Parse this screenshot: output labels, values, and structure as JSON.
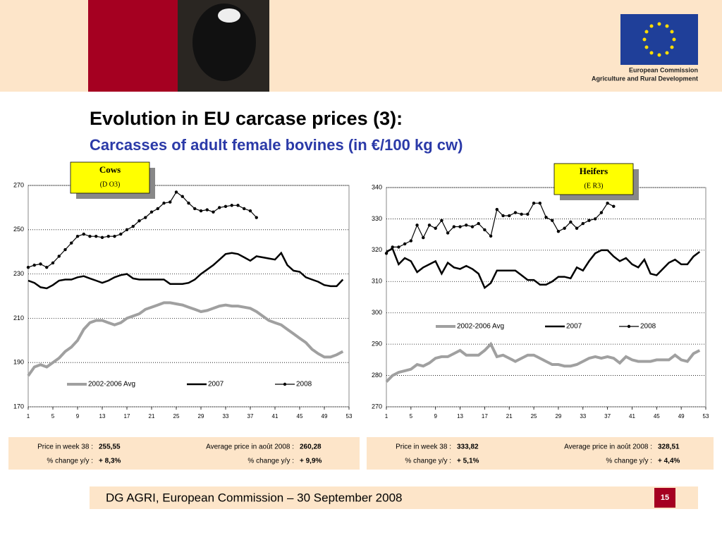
{
  "header": {
    "title": "Evolution in EU carcase prices (3):",
    "subtitle": "Carcasses of adult female bovines (in €/100 kg cw)",
    "logo_line1": "European Commission",
    "logo_line2": "Agriculture and Rural Development"
  },
  "chart_data": [
    {
      "type": "line",
      "title": "Cows",
      "subtitle": "(D O3)",
      "grid": true,
      "x": [
        1,
        2,
        3,
        4,
        5,
        6,
        7,
        8,
        9,
        10,
        11,
        12,
        13,
        14,
        15,
        16,
        17,
        18,
        19,
        20,
        21,
        22,
        23,
        24,
        25,
        26,
        27,
        28,
        29,
        30,
        31,
        32,
        33,
        34,
        35,
        36,
        37,
        38,
        39,
        40,
        41,
        42,
        43,
        44,
        45,
        46,
        47,
        48,
        49,
        50,
        51,
        52
      ],
      "xlim": [
        1,
        53
      ],
      "xticks": [
        1,
        5,
        9,
        13,
        17,
        21,
        25,
        29,
        33,
        37,
        41,
        45,
        49,
        53
      ],
      "ylim": [
        170,
        270
      ],
      "yticks": [
        170,
        190,
        210,
        230,
        250,
        270
      ],
      "series": [
        {
          "name": "2002-2006 Avg",
          "color": "#a0a0a0",
          "values": [
            184,
            188,
            189,
            188,
            190,
            192,
            195,
            197,
            200,
            205,
            208,
            209,
            209,
            208,
            207,
            208,
            210,
            211,
            212,
            214,
            215,
            216,
            217,
            217,
            216.5,
            216,
            215,
            214,
            213,
            213.5,
            214.5,
            215.5,
            216,
            215.5,
            215.5,
            215,
            214.5,
            213,
            211,
            209,
            208,
            207,
            205,
            203,
            201,
            199,
            196,
            194,
            192.5,
            192.5,
            193.5,
            195
          ]
        },
        {
          "name": "2007",
          "color": "#000000",
          "values": [
            227,
            226,
            224,
            223.5,
            225,
            227,
            227.5,
            227.5,
            228.5,
            229,
            228,
            227,
            226,
            227,
            228.5,
            229.5,
            230,
            228,
            227.5,
            227.5,
            227.5,
            227.5,
            227.5,
            225.5,
            225.5,
            225.5,
            226,
            227.5,
            230,
            232,
            234,
            236.5,
            239,
            239.5,
            239,
            237.5,
            236,
            238,
            237.5,
            237,
            236.5,
            239.5,
            234,
            231.5,
            231,
            228.5,
            227.5,
            226.5,
            225,
            224.5,
            224.5,
            227.5
          ]
        },
        {
          "name": "2008",
          "color": "#000000",
          "values": [
            233,
            234,
            234.5,
            233,
            235,
            238,
            241,
            244,
            247,
            248,
            247,
            247,
            246.5,
            247,
            247,
            248,
            250,
            251.5,
            254,
            255.5,
            258,
            259.5,
            262,
            262.5,
            267,
            265,
            262,
            259.5,
            258.5,
            259,
            258,
            260,
            260.5,
            261,
            261,
            259.5,
            258.5,
            255.5,
            null,
            null,
            null,
            null,
            null,
            null,
            null,
            null,
            null,
            null,
            null,
            null,
            null,
            null
          ]
        }
      ]
    },
    {
      "type": "line",
      "title": "Heifers",
      "subtitle": "(E R3)",
      "grid": true,
      "x": [
        1,
        2,
        3,
        4,
        5,
        6,
        7,
        8,
        9,
        10,
        11,
        12,
        13,
        14,
        15,
        16,
        17,
        18,
        19,
        20,
        21,
        22,
        23,
        24,
        25,
        26,
        27,
        28,
        29,
        30,
        31,
        32,
        33,
        34,
        35,
        36,
        37,
        38,
        39,
        40,
        41,
        42,
        43,
        44,
        45,
        46,
        47,
        48,
        49,
        50,
        51,
        52
      ],
      "xlim": [
        1,
        53
      ],
      "xticks": [
        1,
        5,
        9,
        13,
        17,
        21,
        25,
        29,
        33,
        37,
        41,
        45,
        49,
        53
      ],
      "ylim": [
        270,
        340
      ],
      "yticks": [
        270,
        280,
        290,
        300,
        310,
        320,
        330,
        340
      ],
      "series": [
        {
          "name": "2002-2006 Avg",
          "color": "#a0a0a0",
          "values": [
            278,
            280,
            281,
            281.5,
            282,
            283.5,
            283,
            284,
            285.5,
            286,
            286,
            287,
            288,
            286.5,
            286.5,
            286.5,
            288,
            290,
            286,
            286.5,
            285.5,
            284.5,
            285.5,
            286.5,
            286.5,
            285.5,
            284.5,
            283.5,
            283.5,
            283,
            283,
            283.5,
            284.5,
            285.5,
            286,
            285.5,
            286,
            285.5,
            284,
            286,
            285,
            284.5,
            284.5,
            284.5,
            285,
            285,
            285,
            286.5,
            285,
            284.5,
            287,
            288
          ]
        },
        {
          "name": "2007",
          "color": "#000000",
          "values": [
            319.5,
            320.5,
            315.5,
            317.5,
            316.5,
            313,
            314.5,
            315.5,
            316.5,
            312.5,
            316,
            314.5,
            314,
            315,
            314,
            312.5,
            308,
            309.5,
            313.5,
            313.5,
            313.5,
            313.5,
            312,
            310.5,
            310.5,
            309,
            309,
            310,
            311.5,
            311.5,
            311,
            314.5,
            313.5,
            316.5,
            319,
            320,
            320,
            318,
            316.5,
            317.5,
            315.5,
            314.5,
            317,
            312.5,
            312,
            314,
            316,
            317,
            315.5,
            315.5,
            318,
            319.5
          ]
        },
        {
          "name": "2008",
          "color": "#000000",
          "values": [
            319,
            321,
            321,
            322,
            323,
            328,
            324,
            328,
            327,
            329.5,
            325.5,
            327.5,
            327.5,
            328,
            327.5,
            328.5,
            326.5,
            324.5,
            333,
            331,
            331,
            332,
            331.5,
            331.5,
            335,
            335,
            330.5,
            329.5,
            326,
            327,
            329,
            327,
            328.5,
            329.5,
            330,
            332,
            335,
            334,
            null,
            null,
            null,
            null,
            null,
            null,
            null,
            null,
            null,
            null,
            null,
            null,
            null,
            null
          ]
        }
      ]
    }
  ],
  "stats": [
    {
      "week_label": "Price in week 38 :",
      "week_value": "255,55",
      "week_change_label": "% change y/y :",
      "week_change": "+ 8,3%",
      "month_label": "Average price in août 2008 :",
      "month_value": "260,28",
      "month_change_label": "% change y/y :",
      "month_change": "+ 9,9%"
    },
    {
      "week_label": "Price in week 38 :",
      "week_value": "333,82",
      "week_change_label": "% change y/y :",
      "week_change": "+ 5,1%",
      "month_label": "Average price in août 2008 :",
      "month_value": "328,51",
      "month_change_label": "% change y/y :",
      "month_change": "+ 4,4%"
    }
  ],
  "footer": {
    "text": "DG AGRI, European Commission – 30 September 2008",
    "page": "15"
  }
}
